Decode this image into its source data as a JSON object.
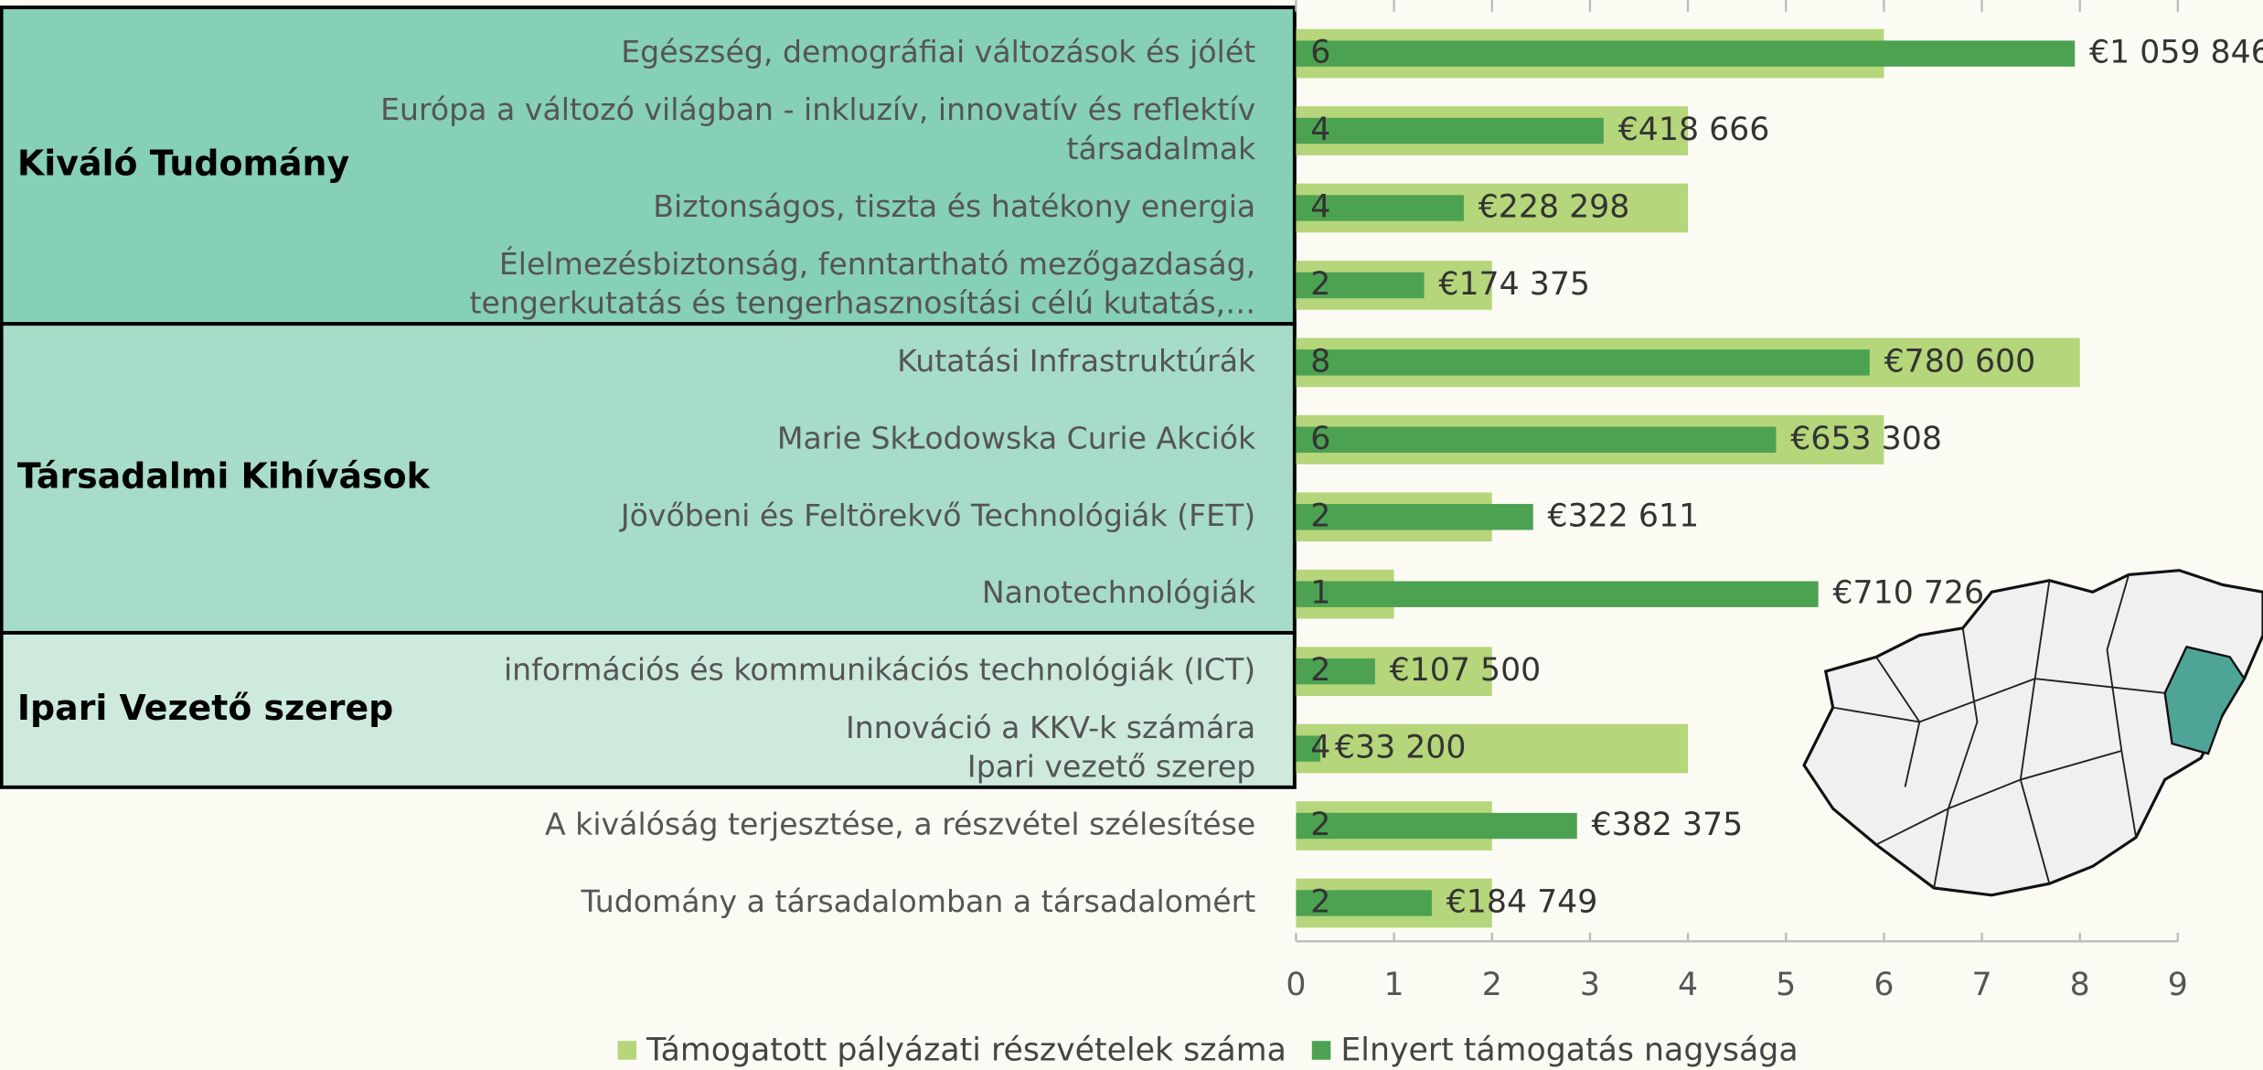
{
  "chart_data": {
    "type": "bar",
    "orientation": "horizontal",
    "groups": [
      "Kiváló Tudomány",
      "Társadalmi Kihívások",
      "Ipari Vezető szerep"
    ],
    "categories": [
      [
        "Egészség, demográfiai változások és jólét"
      ],
      [
        "Európa a változó világban - inkluzív, innovatív és reflektív",
        "társadalmak"
      ],
      [
        "Biztonságos, tiszta és hatékony energia"
      ],
      [
        "Élelmezésbiztonság, fenntartható mezőgazdaság,",
        "tengerkutatás és tengerhasznosítási célú kutatás,…"
      ],
      [
        "Kutatási Infrastruktúrák"
      ],
      [
        "Marie SkŁodowska Curie Akciók"
      ],
      [
        "Jövőbeni és Feltörekvő Technológiák (FET)"
      ],
      [
        "Nanotechnológiák"
      ],
      [
        "információs és kommunikációs technológiák (ICT)"
      ],
      [
        "Innováció a KKV-k számára",
        "Ipari vezető szerep"
      ],
      [
        "A kiválóság terjesztése, a részvétel szélesítése"
      ],
      [
        "Tudomány a társadalomban a társadalomért"
      ]
    ],
    "series": [
      {
        "name": "Támogatott pályázati részvételek száma",
        "color": "#b5d67a",
        "values": [
          6,
          4,
          4,
          2,
          8,
          6,
          2,
          1,
          2,
          4,
          2,
          2
        ]
      },
      {
        "name": "Elnyert támogatás nagysága",
        "color": "#4ca251",
        "axis": "x2",
        "values": [
          1059846,
          418666,
          228298,
          174375,
          780600,
          653308,
          322611,
          710726,
          107500,
          33200,
          382375,
          184749
        ],
        "value_labels": [
          "€1 059 846",
          "€418 666",
          "€228 298",
          "€174 375",
          "€780 600",
          "€653 308",
          "€322 611",
          "€710 726",
          "€107 500",
          "€33 200",
          "€382 375",
          "€184 749"
        ]
      }
    ],
    "xlim": [
      0,
      9
    ],
    "xticks": [
      0,
      1,
      2,
      3,
      4,
      5,
      6,
      7,
      8,
      9
    ],
    "x2lim": [
      0,
      1200000
    ]
  }
}
